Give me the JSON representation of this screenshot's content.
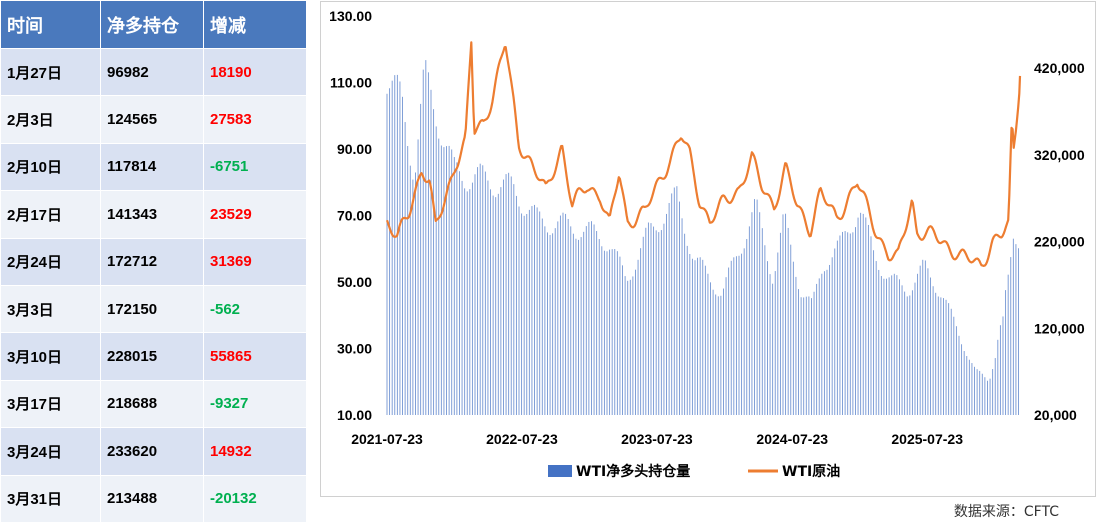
{
  "table": {
    "headers": [
      "时间",
      "净多持仓",
      "增减"
    ],
    "rows": [
      {
        "date": "1月27日",
        "net": "96982",
        "change": "18190"
      },
      {
        "date": "2月3日",
        "net": "124565",
        "change": "27583"
      },
      {
        "date": "2月10日",
        "net": "117814",
        "change": "-6751"
      },
      {
        "date": "2月17日",
        "net": "141343",
        "change": "23529"
      },
      {
        "date": "2月24日",
        "net": "172712",
        "change": "31369"
      },
      {
        "date": "3月3日",
        "net": "172150",
        "change": "-562"
      },
      {
        "date": "3月10日",
        "net": "228015",
        "change": "55865"
      },
      {
        "date": "3月17日",
        "net": "218688",
        "change": "-9327"
      },
      {
        "date": "3月24日",
        "net": "233620",
        "change": "14932"
      },
      {
        "date": "3月31日",
        "net": "213488",
        "change": "-20132"
      }
    ]
  },
  "colors": {
    "header_bg": "#4a79bd",
    "row_odd": "#d9e1f2",
    "row_even": "#eef2f8",
    "positive": "#ff0000",
    "negative": "#00b050",
    "bars": "#4472c4",
    "line": "#ed7d31"
  },
  "chart_data": {
    "type": "bar+line",
    "x_tick_labels": [
      "2021-07-23",
      "2022-07-23",
      "2023-07-23",
      "2024-07-23",
      "2025-07-23"
    ],
    "x_range": [
      "2021-07-23",
      "2026-03-31"
    ],
    "y_left": {
      "ticks": [
        "10.00",
        "30.00",
        "50.00",
        "70.00",
        "90.00",
        "110.00",
        "130.00"
      ],
      "range": [
        10,
        130
      ]
    },
    "y_right": {
      "ticks": [
        "20,000",
        "120,000",
        "220,000",
        "320,000",
        "420,000"
      ],
      "range": [
        20000,
        480000
      ]
    },
    "legend": {
      "bars": "WTI净多头持仓量",
      "line": "WTI原油",
      "position": "bottom"
    },
    "series": [
      {
        "name": "WTI原油",
        "axis": "left",
        "type": "line",
        "points": [
          [
            "2021-07-23",
            68
          ],
          [
            "2021-08-20",
            63
          ],
          [
            "2021-09-20",
            71
          ],
          [
            "2021-10-25",
            84
          ],
          [
            "2021-11-15",
            80
          ],
          [
            "2021-12-01",
            66
          ],
          [
            "2021-12-30",
            76
          ],
          [
            "2022-01-25",
            86
          ],
          [
            "2022-02-20",
            92
          ],
          [
            "2022-03-08",
            122
          ],
          [
            "2022-03-16",
            95
          ],
          [
            "2022-04-10",
            98
          ],
          [
            "2022-05-05",
            106
          ],
          [
            "2022-06-08",
            122
          ],
          [
            "2022-07-14",
            92
          ],
          [
            "2022-08-16",
            86
          ],
          [
            "2022-09-26",
            77
          ],
          [
            "2022-10-20",
            85
          ],
          [
            "2022-11-08",
            91
          ],
          [
            "2022-12-06",
            73
          ],
          [
            "2023-01-15",
            79
          ],
          [
            "2023-02-20",
            76
          ],
          [
            "2023-03-17",
            67
          ],
          [
            "2023-04-12",
            83
          ],
          [
            "2023-05-04",
            68
          ],
          [
            "2023-06-20",
            71
          ],
          [
            "2023-08-10",
            83
          ],
          [
            "2023-09-27",
            94
          ],
          [
            "2023-10-20",
            88
          ],
          [
            "2023-11-15",
            75
          ],
          [
            "2023-12-13",
            68
          ],
          [
            "2024-01-20",
            74
          ],
          [
            "2024-03-01",
            78
          ],
          [
            "2024-04-05",
            87
          ],
          [
            "2024-05-01",
            79
          ],
          [
            "2024-06-04",
            73
          ],
          [
            "2024-07-05",
            84
          ],
          [
            "2024-08-05",
            73
          ],
          [
            "2024-09-10",
            66
          ],
          [
            "2024-10-07",
            77
          ],
          [
            "2024-11-20",
            69
          ],
          [
            "2025-01-15",
            80
          ],
          [
            "2025-03-05",
            66
          ],
          [
            "2025-04-09",
            58
          ],
          [
            "2025-05-05",
            57
          ],
          [
            "2025-06-12",
            75
          ],
          [
            "2025-06-25",
            65
          ],
          [
            "2025-08-10",
            64
          ],
          [
            "2025-10-20",
            58
          ],
          [
            "2025-12-16",
            55
          ],
          [
            "2026-01-15",
            62
          ],
          [
            "2026-02-10",
            64
          ],
          [
            "2026-02-28",
            67
          ],
          [
            "2026-03-09",
            98
          ],
          [
            "2026-03-14",
            90
          ],
          [
            "2026-03-21",
            98
          ],
          [
            "2026-03-31",
            112
          ]
        ]
      },
      {
        "name": "WTI净多头持仓量",
        "axis": "right",
        "type": "bar",
        "points": [
          [
            "2021-07-23",
            410000
          ],
          [
            "2021-09-01",
            380000
          ],
          [
            "2021-10-05",
            300000
          ],
          [
            "2021-11-01",
            410000
          ],
          [
            "2021-12-10",
            360000
          ],
          [
            "2022-01-20",
            300000
          ],
          [
            "2022-03-01",
            295000
          ],
          [
            "2022-05-01",
            290000
          ],
          [
            "2022-07-01",
            280000
          ],
          [
            "2022-09-01",
            245000
          ],
          [
            "2022-11-01",
            240000
          ],
          [
            "2023-01-01",
            235000
          ],
          [
            "2023-03-15",
            220000
          ],
          [
            "2023-05-01",
            175000
          ],
          [
            "2023-07-01",
            230000
          ],
          [
            "2023-09-15",
            270000
          ],
          [
            "2023-11-01",
            200000
          ],
          [
            "2024-01-15",
            160000
          ],
          [
            "2024-03-01",
            210000
          ],
          [
            "2024-04-15",
            260000
          ],
          [
            "2024-06-01",
            180000
          ],
          [
            "2024-07-01",
            245000
          ],
          [
            "2024-08-15",
            165000
          ],
          [
            "2024-09-15",
            145000
          ],
          [
            "2024-10-15",
            195000
          ],
          [
            "2024-12-01",
            215000
          ],
          [
            "2025-01-20",
            260000
          ],
          [
            "2025-03-01",
            205000
          ],
          [
            "2025-04-15",
            175000
          ],
          [
            "2025-06-01",
            165000
          ],
          [
            "2025-07-15",
            190000
          ],
          [
            "2025-09-01",
            160000
          ],
          [
            "2025-10-15",
            115000
          ],
          [
            "2025-12-01",
            70000
          ],
          [
            "2026-01-06",
            60000
          ],
          [
            "2026-01-27",
            96982
          ],
          [
            "2026-02-03",
            124565
          ],
          [
            "2026-02-10",
            117814
          ],
          [
            "2026-02-17",
            141343
          ],
          [
            "2026-02-24",
            172712
          ],
          [
            "2026-03-03",
            172150
          ],
          [
            "2026-03-10",
            228015
          ],
          [
            "2026-03-17",
            218688
          ],
          [
            "2026-03-24",
            233620
          ],
          [
            "2026-03-31",
            213488
          ]
        ]
      }
    ]
  },
  "source": "数据来源：CFTC"
}
